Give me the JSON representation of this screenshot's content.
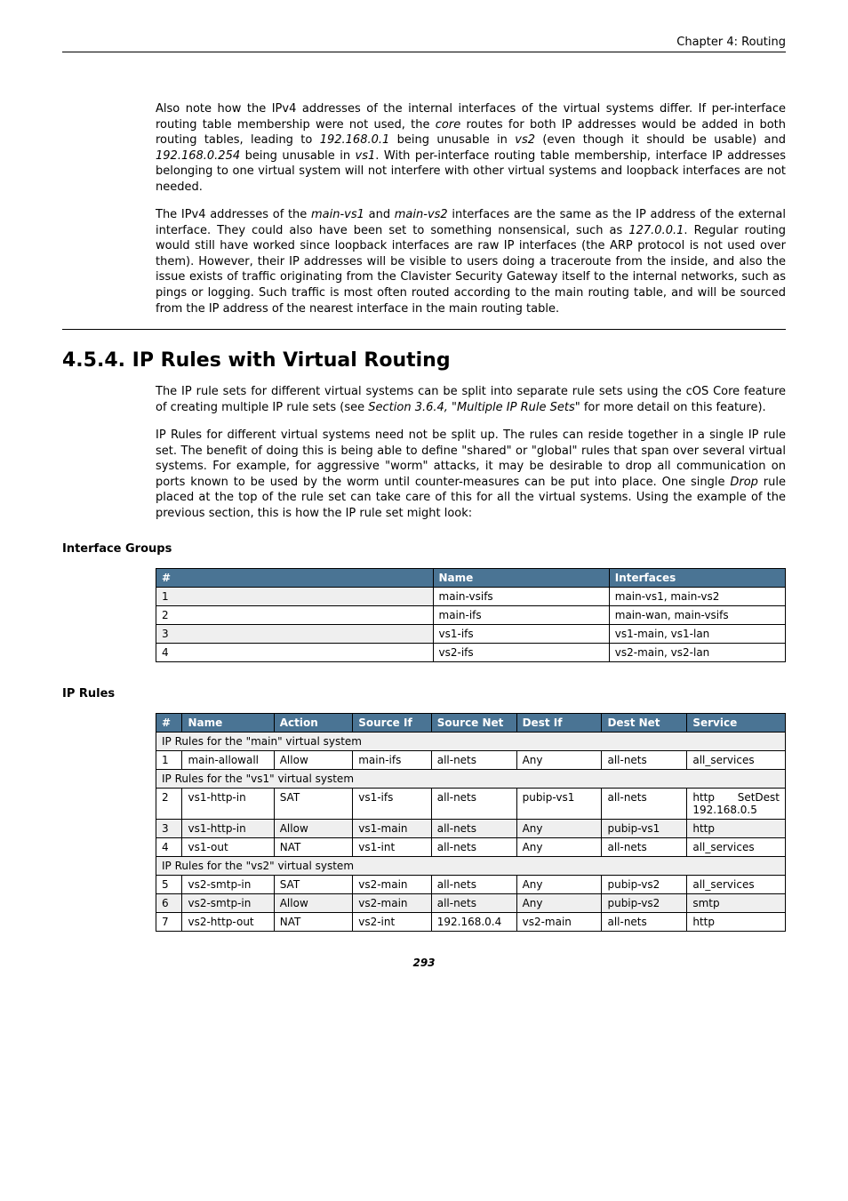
{
  "header": {
    "chapter": "Chapter 4: Routing"
  },
  "paragraphs": {
    "p1a": "Also note how the IPv4 addresses of the internal interfaces of the virtual systems differ. If per-interface routing table membership were not used, the ",
    "p1_core": "core",
    "p1b": " routes for both IP addresses would be added in both routing tables, leading to ",
    "p1_ip1": "192.168.0.1",
    "p1c": " being unusable in ",
    "p1_vs2": "vs2",
    "p1d": " (even though it should be usable) and ",
    "p1_ip2": "192.168.0.254",
    "p1e": " being unusable in ",
    "p1_vs1": "vs1",
    "p1f": ". With per-interface routing table membership, interface IP addresses belonging to one virtual system will not interfere with other virtual systems and loopback interfaces are not needed.",
    "p2a": "The IPv4 addresses of the ",
    "p2_mv1": "main-vs1",
    "p2b": " and ",
    "p2_mv2": "main-vs2",
    "p2c": " interfaces are the same as the IP address of the external interface. They could also have been set to something nonsensical, such as ",
    "p2_ip": "127.0.0.1",
    "p2d": ". Regular routing would still have worked since loopback interfaces are raw IP interfaces (the ARP protocol is not used over them). However, their IP addresses will be visible to users doing a traceroute from the inside, and also the issue exists of traffic originating from the Clavister Security Gateway itself to the internal networks, such as pings or logging. Such traffic is most often routed according to the main routing table, and will be sourced from the IP address of the nearest interface in the main routing table.",
    "p3a": "The IP rule sets for different virtual systems can be split into separate rule sets using the cOS Core feature of creating multiple IP rule sets (see ",
    "p3_ref": "Section 3.6.4, \"Multiple IP Rule Sets\"",
    "p3b": " for more detail on this feature).",
    "p4a": "IP Rules for different virtual systems need not be split up. The rules can reside together in a single IP rule set. The benefit of doing this is being able to define \"shared\" or \"global\" rules that span over several virtual systems. For example, for aggressive \"worm\" attacks, it may be desirable to drop all communication on ports known to be used by the worm until counter-measures can be put into place. One single ",
    "p4_drop": "Drop",
    "p4b": " rule placed at the top of the rule set can take care of this for all the virtual systems. Using the example of the previous section, this is how the IP rule set might look:"
  },
  "section": {
    "title": "4.5.4. IP Rules with Virtual Routing"
  },
  "subheadings": {
    "ifgroups": "Interface Groups",
    "iprules": "IP Rules"
  },
  "ifgroups": {
    "headers": {
      "num": "#",
      "name": "Name",
      "ifaces": "Interfaces"
    },
    "rows": [
      {
        "num": "1",
        "name": "main-vsifs",
        "ifaces": "main-vs1, main-vs2"
      },
      {
        "num": "2",
        "name": "main-ifs",
        "ifaces": "main-wan, main-vsifs"
      },
      {
        "num": "3",
        "name": "vs1-ifs",
        "ifaces": "vs1-main, vs1-lan"
      },
      {
        "num": "4",
        "name": "vs2-ifs",
        "ifaces": "vs2-main, vs2-lan"
      }
    ]
  },
  "iprules": {
    "headers": {
      "num": "#",
      "name": "Name",
      "action": "Action",
      "sif": "Source If",
      "snet": "Source Net",
      "dif": "Dest If",
      "dnet": "Dest Net",
      "svc": "Service"
    },
    "sections": {
      "main": "IP Rules for the \"main\" virtual system",
      "vs1": "IP Rules for the \"vs1\" virtual system",
      "vs2": "IP Rules for the \"vs2\" virtual system"
    },
    "r1": {
      "num": "1",
      "name": "main-allowall",
      "action": "Allow",
      "sif": "main-ifs",
      "snet": "all-nets",
      "dif": "Any",
      "dnet": "all-nets",
      "svc": "all_services"
    },
    "r2": {
      "num": "2",
      "name": "vs1-http-in",
      "action": "SAT",
      "sif": "vs1-ifs",
      "snet": "all-nets",
      "dif": "pubip-vs1",
      "dnet": "all-nets",
      "svc": "http SetDest 192.168.0.5"
    },
    "r3": {
      "num": "3",
      "name": "vs1-http-in",
      "action": "Allow",
      "sif": "vs1-main",
      "snet": "all-nets",
      "dif": "Any",
      "dnet": "pubip-vs1",
      "svc": "http"
    },
    "r4": {
      "num": "4",
      "name": "vs1-out",
      "action": "NAT",
      "sif": "vs1-int",
      "snet": "all-nets",
      "dif": "Any",
      "dnet": "all-nets",
      "svc": "all_services"
    },
    "r5": {
      "num": "5",
      "name": "vs2-smtp-in",
      "action": "SAT",
      "sif": "vs2-main",
      "snet": "all-nets",
      "dif": "Any",
      "dnet": "pubip-vs2",
      "svc": "all_services"
    },
    "r6": {
      "num": "6",
      "name": "vs2-smtp-in",
      "action": "Allow",
      "sif": "vs2-main",
      "snet": "all-nets",
      "dif": "Any",
      "dnet": "pubip-vs2",
      "svc": "smtp"
    },
    "r7": {
      "num": "7",
      "name": "vs2-http-out",
      "action": "NAT",
      "sif": "vs2-int",
      "snet": "192.168.0.4",
      "dif": "vs2-main",
      "dnet": "all-nets",
      "svc": "http"
    }
  },
  "footer": {
    "pagenum": "293"
  }
}
